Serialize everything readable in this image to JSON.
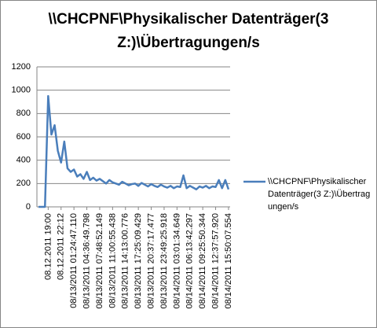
{
  "chart_data": {
    "type": "line",
    "title": "\\\\CHCPNF\\Physikalischer Datenträger(3 Z:)\\Übertragungen/s",
    "categories": [
      null,
      null,
      null,
      "08.12.2011 19:00",
      null,
      null,
      null,
      "08.12.2011 22:12",
      null,
      null,
      null,
      "08/13/2011 01:24:47.110",
      null,
      null,
      null,
      "08/13/2011 04:36:49.798",
      null,
      null,
      null,
      "08/13/2011 07:48:52.149",
      null,
      null,
      null,
      "08/13/2011 11:00:55.438",
      null,
      null,
      null,
      "08/13/2011 14:13:00.776",
      null,
      null,
      null,
      "08/13/2011 17:25:09.429",
      null,
      null,
      null,
      "08/13/2011 20:37:17.477",
      null,
      null,
      null,
      "08/13/2011 23:49:25.918",
      null,
      null,
      null,
      "08/14/2011 03:01:34.649",
      null,
      null,
      null,
      "08/14/2011 06:13:42.297",
      null,
      null,
      null,
      "08/14/2011 09:25:50.344",
      null,
      null,
      null,
      "08/14/2011 12:37:57.920",
      null,
      null,
      null,
      "08/14/2011 15:50:07.554"
    ],
    "series": [
      {
        "name": "\\\\CHCPNF\\Physikalischer Datenträger(3 Z:)\\Übertragungen/s",
        "color": "#4a7ebb",
        "values": [
          0,
          0,
          0,
          950,
          620,
          700,
          480,
          380,
          560,
          330,
          300,
          320,
          260,
          280,
          240,
          300,
          230,
          250,
          225,
          240,
          220,
          200,
          230,
          210,
          200,
          190,
          215,
          200,
          185,
          195,
          200,
          180,
          205,
          190,
          175,
          195,
          180,
          170,
          190,
          175,
          165,
          180,
          160,
          175,
          170,
          270,
          160,
          180,
          165,
          150,
          175,
          165,
          180,
          160,
          175,
          170,
          230,
          160,
          230,
          150
        ]
      }
    ],
    "ylim": [
      0,
      1200
    ],
    "yticks": [
      0,
      200,
      400,
      600,
      800,
      1000,
      1200
    ],
    "grid": true,
    "legend": "right"
  }
}
